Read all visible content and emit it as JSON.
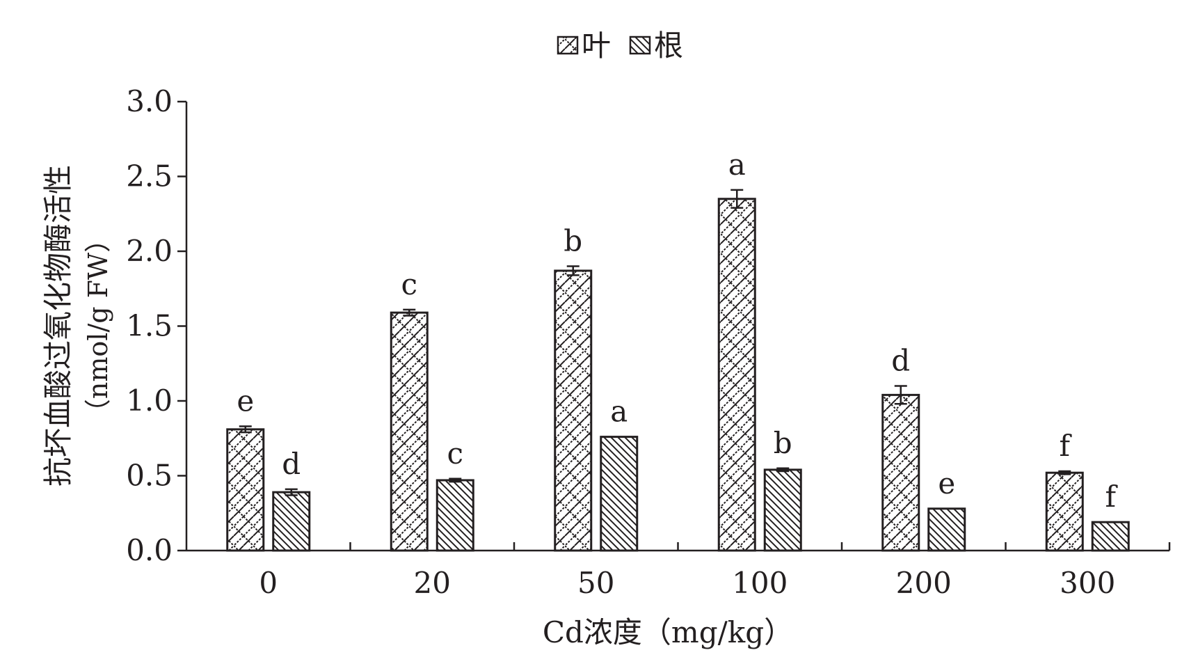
{
  "chart_data": {
    "type": "bar",
    "title": "",
    "xlabel": "Cd浓度（mg/kg）",
    "ylabel": "抗坏血酸过氧化物酶活性",
    "ylabel_unit": "（nmol/g FW）",
    "categories": [
      "0",
      "20",
      "50",
      "100",
      "200",
      "300"
    ],
    "ylim": [
      0,
      3.0
    ],
    "yticks": [
      "0.0",
      "0.5",
      "1.0",
      "1.5",
      "2.0",
      "2.5",
      "3.0"
    ],
    "grid": false,
    "legend_position": "top-center",
    "series": [
      {
        "name": "叶",
        "pattern": "zigzag-hatch",
        "values": [
          0.81,
          1.59,
          1.87,
          2.35,
          1.04,
          0.52
        ],
        "errors": [
          0.02,
          0.02,
          0.03,
          0.06,
          0.06,
          0.01
        ],
        "labels": [
          "e",
          "c",
          "b",
          "a",
          "d",
          "f"
        ]
      },
      {
        "name": "根",
        "pattern": "diagonal-hatch",
        "values": [
          0.39,
          0.47,
          0.76,
          0.54,
          0.28,
          0.19
        ],
        "errors": [
          0.02,
          0.01,
          0.0,
          0.01,
          0.0,
          0.0
        ],
        "labels": [
          "d",
          "c",
          "a",
          "b",
          "e",
          "f"
        ]
      }
    ]
  },
  "colors": {
    "ink": "#231f20",
    "background": "#ffffff"
  }
}
